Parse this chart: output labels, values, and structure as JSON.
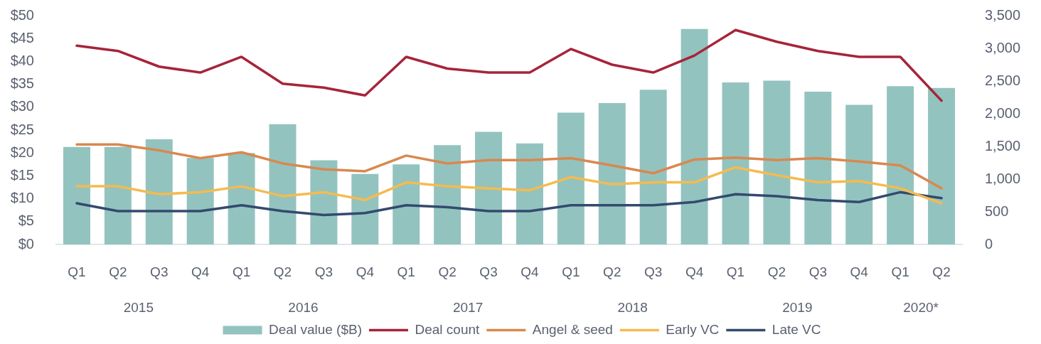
{
  "chart_data": {
    "type": "bar",
    "categories": [
      "Q1",
      "Q2",
      "Q3",
      "Q4",
      "Q1",
      "Q2",
      "Q3",
      "Q4",
      "Q1",
      "Q2",
      "Q3",
      "Q4",
      "Q1",
      "Q2",
      "Q3",
      "Q4",
      "Q1",
      "Q2",
      "Q3",
      "Q4",
      "Q1",
      "Q2"
    ],
    "series": [
      {
        "name": "Deal value ($B)",
        "color": "#93c3bf",
        "values": [
          21.3,
          21.3,
          23.0,
          18.9,
          20.0,
          26.3,
          18.4,
          15.4,
          17.5,
          21.7,
          24.6,
          22.1,
          28.8,
          30.9,
          33.8,
          47.1,
          35.4,
          35.8,
          33.4,
          30.5,
          34.6,
          34.2
        ]
      },
      {
        "name": "Deal count",
        "type": "line",
        "axis": "y2",
        "color": "#a6243a",
        "values": [
          3040,
          2960,
          2720,
          2630,
          2870,
          2460,
          2400,
          2280,
          2870,
          2690,
          2630,
          2630,
          2990,
          2750,
          2630,
          2890,
          3280,
          3100,
          2960,
          2870,
          2870,
          2200
        ]
      },
      {
        "name": "Angel & seed",
        "type": "line",
        "axis": "y2",
        "color": "#d9884f",
        "values": [
          1530,
          1530,
          1440,
          1320,
          1410,
          1240,
          1150,
          1120,
          1360,
          1240,
          1290,
          1290,
          1320,
          1210,
          1090,
          1300,
          1330,
          1290,
          1320,
          1270,
          1210,
          860
        ]
      },
      {
        "name": "Early VC",
        "type": "line",
        "axis": "y2",
        "color": "#f4bb4f",
        "values": [
          890,
          890,
          770,
          800,
          890,
          740,
          800,
          680,
          950,
          890,
          860,
          830,
          1030,
          920,
          950,
          950,
          1180,
          1060,
          950,
          970,
          860,
          630
        ]
      },
      {
        "name": "Late VC",
        "type": "line",
        "axis": "y2",
        "color": "#344a6e",
        "values": [
          630,
          510,
          510,
          510,
          600,
          510,
          450,
          480,
          600,
          570,
          510,
          510,
          600,
          600,
          600,
          650,
          770,
          740,
          680,
          650,
          800,
          710
        ]
      }
    ],
    "ylim": [
      0,
      50
    ],
    "yticks": [
      {
        "value": 0,
        "label": "$0"
      },
      {
        "value": 5,
        "label": "$5"
      },
      {
        "value": 10,
        "label": "$10"
      },
      {
        "value": 15,
        "label": "$15"
      },
      {
        "value": 20,
        "label": "$20"
      },
      {
        "value": 25,
        "label": "$25"
      },
      {
        "value": 30,
        "label": "$30"
      },
      {
        "value": 35,
        "label": "$35"
      },
      {
        "value": 40,
        "label": "$40"
      },
      {
        "value": 45,
        "label": "$45"
      },
      {
        "value": 50,
        "label": "$50"
      }
    ],
    "y2lim": [
      0,
      3500
    ],
    "y2ticks": [
      0,
      500,
      {
        "value": 1000,
        "label": "1,000"
      },
      {
        "value": 1500,
        "label": "1,500"
      },
      {
        "value": 2000,
        "label": "2,000"
      },
      {
        "value": 2500,
        "label": "2,500"
      },
      {
        "value": 3000,
        "label": "3,000"
      },
      {
        "value": 3500,
        "label": "3,500"
      }
    ],
    "annotations": [
      "2015",
      "2016",
      "2017",
      "2018",
      "2019",
      "2020*"
    ],
    "legend": "bottom",
    "marker": "none",
    "line_style": "solid"
  }
}
